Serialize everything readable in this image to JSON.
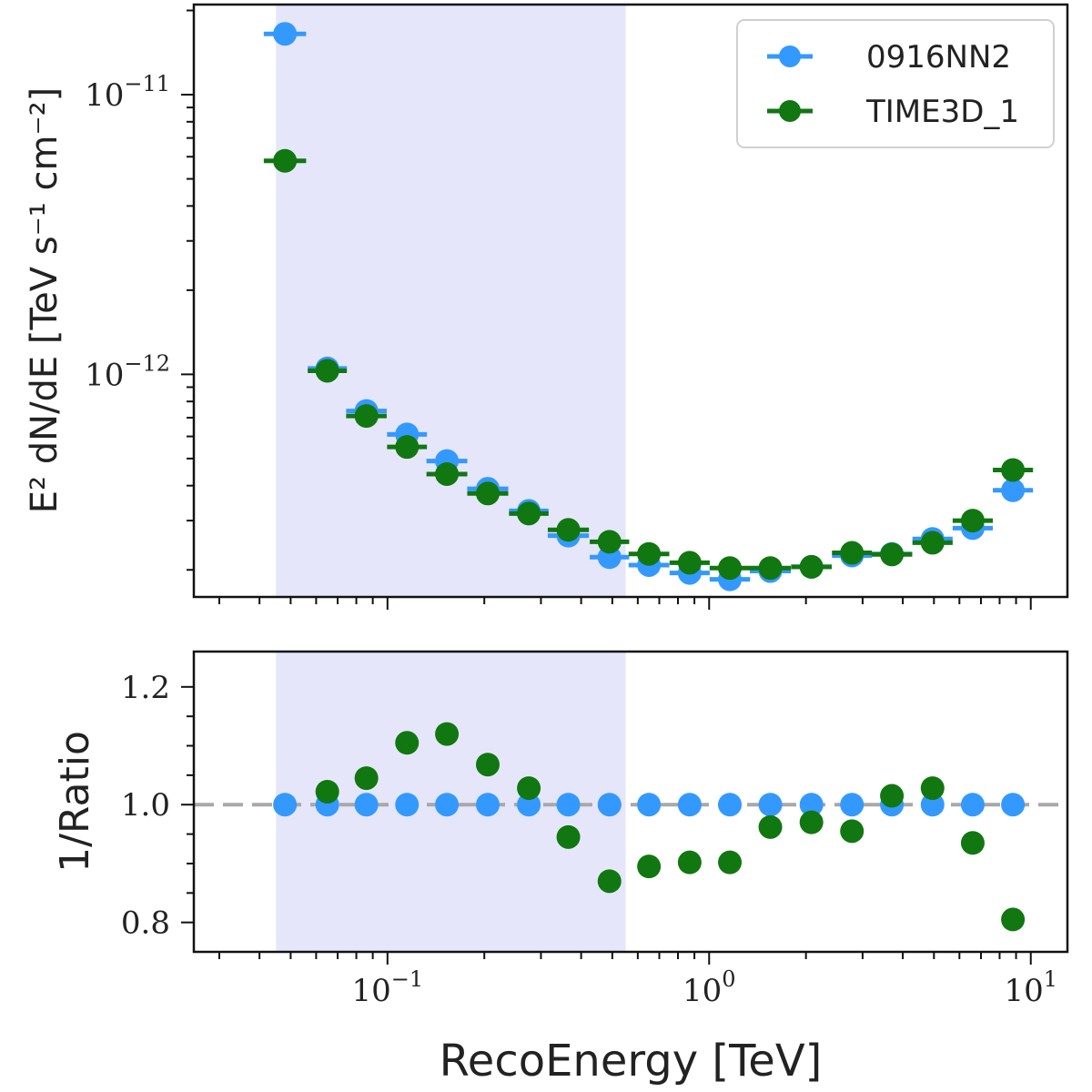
{
  "chart_data": [
    {
      "type": "scatter",
      "panel": "top",
      "ylabel": "E² dN/dE [TeV s⁻¹ cm⁻²]",
      "yscale": "log",
      "xscale": "log",
      "xlim": [
        0.025,
        13
      ],
      "ylim": [
        1.6e-13,
        2.1e-11
      ],
      "ytick_labels": [
        {
          "value": 1e-11,
          "base": "10",
          "exp": "−11"
        },
        {
          "value": 1e-12,
          "base": "10",
          "exp": "−12"
        }
      ],
      "shaded_range": [
        0.045,
        0.55
      ],
      "x": [
        0.048,
        0.065,
        0.086,
        0.115,
        0.153,
        0.205,
        0.275,
        0.365,
        0.49,
        0.65,
        0.87,
        1.16,
        1.55,
        2.08,
        2.78,
        3.7,
        4.95,
        6.6,
        8.8
      ],
      "series": [
        {
          "name": "0916NN2",
          "color": "#3399ff",
          "values": [
            1.65e-11,
            1.05e-12,
            7.4e-13,
            6.1e-13,
            4.9e-13,
            3.9e-13,
            3.25e-13,
            2.65e-13,
            2.22e-13,
            2.08e-13,
            1.95e-13,
            1.85e-13,
            1.98e-13,
            2.05e-13,
            2.25e-13,
            2.28e-13,
            2.58e-13,
            2.82e-13,
            3.85e-13
          ]
        },
        {
          "name": "TIME3D_1",
          "color": "#117711",
          "values": [
            5.8e-12,
            1.03e-12,
            7.1e-13,
            5.5e-13,
            4.4e-13,
            3.75e-13,
            3.18e-13,
            2.78e-13,
            2.52e-13,
            2.28e-13,
            2.12e-13,
            2.03e-13,
            2.03e-13,
            2.05e-13,
            2.3e-13,
            2.27e-13,
            2.5e-13,
            3e-13,
            4.55e-13
          ]
        }
      ],
      "legend": {
        "placement": "top-right",
        "entries": [
          "0916NN2",
          "TIME3D_1"
        ]
      }
    },
    {
      "type": "scatter",
      "panel": "bottom",
      "xlabel": "RecoEnergy [TeV]",
      "ylabel": "1/Ratio",
      "xscale": "log",
      "xlim": [
        0.025,
        13
      ],
      "ylim": [
        0.75,
        1.26
      ],
      "yticks": [
        0.8,
        1.0,
        1.2
      ],
      "ytick_labels": [
        "0.8",
        "1.0",
        "1.2"
      ],
      "xtick_labels": [
        {
          "value": 0.1,
          "base": "10",
          "exp": "−1"
        },
        {
          "value": 1,
          "base": "10",
          "exp": "0"
        },
        {
          "value": 10,
          "base": "10",
          "exp": "1"
        }
      ],
      "reference_line": 1.0,
      "shaded_range": [
        0.045,
        0.55
      ],
      "x": [
        0.048,
        0.065,
        0.086,
        0.115,
        0.153,
        0.205,
        0.275,
        0.365,
        0.49,
        0.65,
        0.87,
        1.16,
        1.55,
        2.08,
        2.78,
        3.7,
        4.95,
        6.6,
        8.8
      ],
      "series": [
        {
          "name": "0916NN2",
          "color": "#3399ff",
          "values": [
            1.0,
            1.0,
            1.0,
            1.0,
            1.0,
            1.0,
            1.0,
            1.0,
            1.0,
            1.0,
            1.0,
            1.0,
            1.0,
            1.0,
            1.0,
            1.0,
            1.0,
            1.0,
            1.0
          ]
        },
        {
          "name": "TIME3D_1",
          "color": "#117711",
          "values": [
            null,
            1.022,
            1.045,
            1.105,
            1.12,
            1.068,
            1.028,
            0.945,
            0.87,
            0.895,
            0.902,
            0.902,
            0.962,
            0.97,
            0.955,
            1.015,
            1.028,
            0.935,
            0.805
          ]
        }
      ]
    }
  ]
}
